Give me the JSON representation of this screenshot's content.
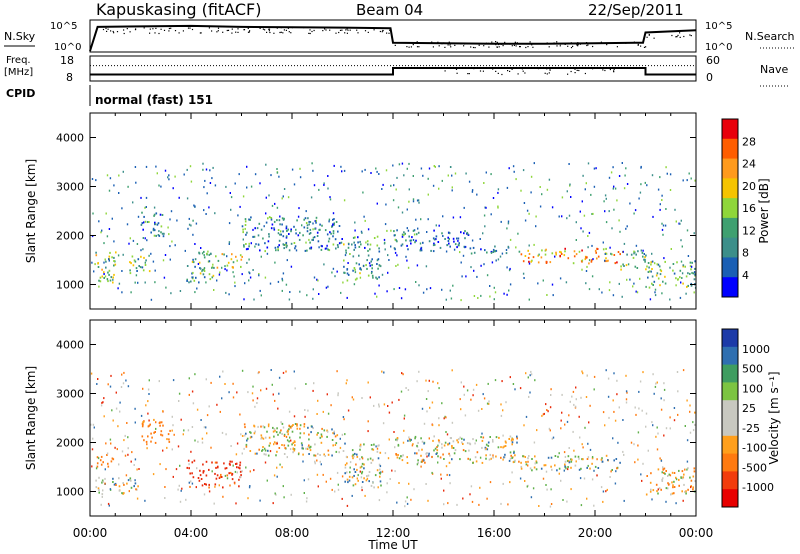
{
  "header": {
    "station": "Kapuskasing (fitACF)",
    "beam": "Beam 04",
    "date": "22/Sep/2011"
  },
  "nsky_panel": {
    "left_label": "N.Sky",
    "right_label": "N.Search",
    "left_ticks": [
      "10^5",
      "10^0"
    ],
    "right_ticks": [
      "10^5",
      "10^0"
    ]
  },
  "freq_panel": {
    "left_label_1": "Freq.",
    "left_label_2": "[MHz]",
    "right_label": "Nave",
    "left_ticks": [
      "18",
      "8"
    ],
    "right_ticks": [
      "60",
      "0"
    ],
    "cpid_label": "CPID",
    "mode_text": "normal (fast) 151"
  },
  "power_panel": {
    "ylabel": "Slant Range [km]",
    "colorbar_label": "Power [dB]",
    "colorbar_ticks": [
      "28",
      "24",
      "20",
      "16",
      "12",
      "8",
      "4"
    ],
    "colorbar_colors": [
      "#e8000b",
      "#ff5e00",
      "#ff9a1c",
      "#f5c400",
      "#8fd63a",
      "#3fa070",
      "#3c8f8a",
      "#1a5fb4",
      "#0000ff"
    ]
  },
  "velocity_panel": {
    "ylabel": "Slant Range [km]",
    "colorbar_label": "Velocity [m s⁻¹]",
    "colorbar_ticks": [
      "1000",
      "500",
      "100",
      "25",
      "-25",
      "-100",
      "-500",
      "-1000"
    ],
    "colorbar_colors": [
      "#1c3aa8",
      "#2f6fb0",
      "#3f9d60",
      "#7cc441",
      "#c8c8c0",
      "#c8c8c0",
      "#ff9f1c",
      "#ff7a10",
      "#f23c0c",
      "#e80000"
    ]
  },
  "xaxis": {
    "label": "Time UT",
    "ticks": [
      "00:00",
      "04:00",
      "08:00",
      "12:00",
      "16:00",
      "20:00",
      "00:00"
    ]
  },
  "chart_data": [
    {
      "type": "line",
      "title": "N.Sky / N.Search",
      "x_unit": "hours UT",
      "xlim": [
        0,
        24
      ],
      "series": [
        {
          "name": "N.Sky",
          "x": [
            0,
            0.3,
            2,
            4,
            6,
            8,
            10,
            11.9,
            12,
            14,
            16,
            18,
            20,
            21.9,
            22,
            24
          ],
          "values": [
            1,
            20000,
            25000,
            30000,
            20000,
            18000,
            15000,
            12000,
            30,
            25,
            20,
            20,
            25,
            30,
            2000,
            5000
          ]
        }
      ]
    },
    {
      "type": "line",
      "title": "Freq / Nave",
      "x_unit": "hours UT",
      "xlim": [
        0,
        24
      ],
      "series": [
        {
          "name": "Freq.",
          "x": [
            0,
            12,
            12,
            22,
            22,
            24
          ],
          "values": [
            10.3,
            10.3,
            13,
            13,
            10.3,
            10.3
          ]
        },
        {
          "name": "Nave",
          "x": [
            0,
            24
          ],
          "values": [
            36,
            36
          ]
        }
      ],
      "ylim_left": [
        8,
        18
      ],
      "ylim_right": [
        0,
        60
      ]
    },
    {
      "type": "heatmap",
      "title": "Power [dB]",
      "x_unit": "hours UT",
      "y_unit": "km",
      "xlim": [
        0,
        24
      ],
      "ylim": [
        500,
        4500
      ],
      "zlim": [
        0,
        30
      ],
      "regions": [
        {
          "t0": 0.2,
          "t1": 1.0,
          "r0": 950,
          "r1": 1700,
          "power": 14
        },
        {
          "t0": 1.5,
          "t1": 2.4,
          "r0": 1200,
          "r1": 1600,
          "power": 12
        },
        {
          "t0": 2.0,
          "t1": 3.0,
          "r0": 2000,
          "r1": 2500,
          "power": 8
        },
        {
          "t0": 3.8,
          "t1": 5.0,
          "r0": 1050,
          "r1": 1700,
          "power": 12
        },
        {
          "t0": 5.0,
          "t1": 6.0,
          "r0": 1350,
          "r1": 1650,
          "power": 16
        },
        {
          "t0": 6.0,
          "t1": 10.0,
          "r0": 1700,
          "r1": 2400,
          "power": 8
        },
        {
          "t0": 10.0,
          "t1": 11.5,
          "r0": 1100,
          "r1": 2000,
          "power": 10
        },
        {
          "t0": 12.0,
          "t1": 15.0,
          "r0": 1700,
          "r1": 2150,
          "power": 6
        },
        {
          "t0": 15.0,
          "t1": 17.0,
          "r0": 1650,
          "r1": 1800,
          "power": 6
        },
        {
          "t0": 17.0,
          "t1": 21.0,
          "r0": 1450,
          "r1": 1750,
          "power": 22
        },
        {
          "t0": 21.0,
          "t1": 22.0,
          "r0": 1300,
          "r1": 1700,
          "power": 14
        },
        {
          "t0": 22.0,
          "t1": 24.0,
          "r0": 950,
          "r1": 1500,
          "power": 12
        }
      ]
    },
    {
      "type": "heatmap",
      "title": "Velocity [m s⁻¹]",
      "x_unit": "hours UT",
      "y_unit": "km",
      "xlim": [
        0,
        24
      ],
      "ylim": [
        500,
        4500
      ],
      "zlim": [
        -1000,
        1000
      ],
      "regions": [
        {
          "t0": 0.2,
          "t1": 1.0,
          "r0": 1500,
          "r1": 1800,
          "velocity": -300
        },
        {
          "t0": 0.2,
          "t1": 2.0,
          "r0": 950,
          "r1": 1300,
          "velocity": 0
        },
        {
          "t0": 2.0,
          "t1": 3.2,
          "r0": 2000,
          "r1": 2500,
          "velocity": -200
        },
        {
          "t0": 3.8,
          "t1": 6.0,
          "r0": 1100,
          "r1": 1650,
          "velocity": -600
        },
        {
          "t0": 6.0,
          "t1": 10.0,
          "r0": 1750,
          "r1": 2400,
          "velocity": 0
        },
        {
          "t0": 10.0,
          "t1": 11.5,
          "r0": 1100,
          "r1": 2000,
          "velocity": 50
        },
        {
          "t0": 12.0,
          "t1": 17.0,
          "r0": 1600,
          "r1": 2150,
          "velocity": 0
        },
        {
          "t0": 17.0,
          "t1": 21.0,
          "r0": 1450,
          "r1": 1750,
          "velocity": 0
        },
        {
          "t0": 22.0,
          "t1": 24.0,
          "r0": 950,
          "r1": 1500,
          "velocity": -50
        }
      ]
    }
  ]
}
